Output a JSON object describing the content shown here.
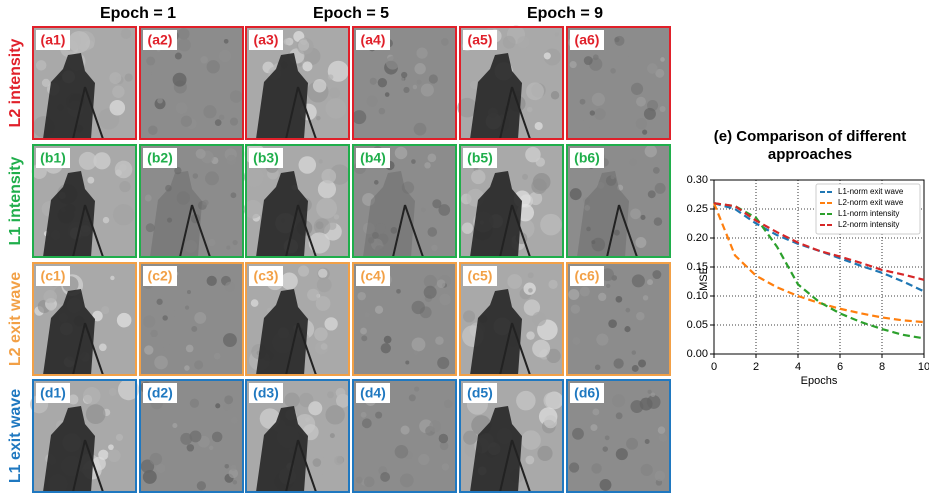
{
  "columns": [
    "Epoch = 1",
    "Epoch = 5",
    "Epoch = 9"
  ],
  "rows": [
    {
      "label": "L2 intensity",
      "color": "#e0202a",
      "panels": [
        "(a1)",
        "(a2)",
        "(a3)",
        "(a4)",
        "(a5)",
        "(a6)"
      ]
    },
    {
      "label": "L1 intensity",
      "color": "#1fae4b",
      "panels": [
        "(b1)",
        "(b2)",
        "(b3)",
        "(b4)",
        "(b5)",
        "(b6)"
      ]
    },
    {
      "label": "L2 exit wave",
      "color": "#f2a046",
      "panels": [
        "(c1)",
        "(c2)",
        "(c3)",
        "(c4)",
        "(c5)",
        "(c6)"
      ]
    },
    {
      "label": "L1 exit wave",
      "color": "#1f78c0",
      "panels": [
        "(d1)",
        "(d2)",
        "(d3)",
        "(d4)",
        "(d5)",
        "(d6)"
      ]
    }
  ],
  "chart_data": {
    "type": "line",
    "title": "(e) Comparison of different approaches",
    "x_label": "Epochs",
    "y_label": "MSE",
    "x": [
      0,
      1,
      2,
      3,
      4,
      5,
      6,
      7,
      8,
      9,
      10
    ],
    "series": [
      {
        "name": "L1-norm exit wave",
        "color": "#1f77b4",
        "values": [
          0.26,
          0.25,
          0.225,
          0.205,
          0.19,
          0.178,
          0.165,
          0.152,
          0.14,
          0.125,
          0.108
        ]
      },
      {
        "name": "L2-norm exit wave",
        "color": "#ff7f0e",
        "values": [
          0.26,
          0.17,
          0.135,
          0.115,
          0.1,
          0.088,
          0.078,
          0.07,
          0.063,
          0.058,
          0.055
        ]
      },
      {
        "name": "L1-norm intensity",
        "color": "#2ca02c",
        "values": [
          0.26,
          0.255,
          0.235,
          0.185,
          0.12,
          0.09,
          0.07,
          0.055,
          0.043,
          0.033,
          0.027
        ]
      },
      {
        "name": "L2-norm intensity",
        "color": "#d62728",
        "values": [
          0.26,
          0.255,
          0.23,
          0.21,
          0.192,
          0.178,
          0.168,
          0.157,
          0.145,
          0.137,
          0.128
        ]
      }
    ],
    "xlim": [
      0,
      10
    ],
    "xticks": [
      0,
      2,
      4,
      6,
      8,
      10
    ],
    "ylim": [
      0,
      0.3
    ],
    "yticks": [
      {
        "value": 0,
        "label": "0.00"
      },
      {
        "value": 0.05,
        "label": "0.05"
      },
      {
        "value": 0.1,
        "label": "0.10"
      },
      {
        "value": 0.15,
        "label": "0.15"
      },
      {
        "value": 0.2,
        "label": "0.20"
      },
      {
        "value": 0.25,
        "label": "0.25"
      },
      {
        "value": 0.3,
        "label": "0.30"
      }
    ],
    "grid": true,
    "legend": "upper right"
  }
}
